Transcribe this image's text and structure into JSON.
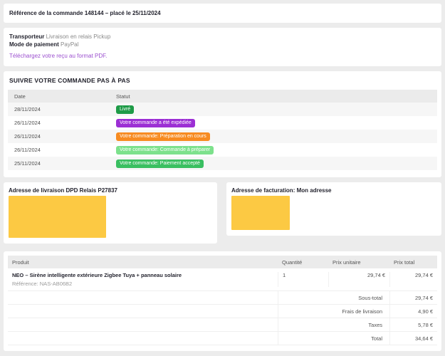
{
  "order_header": {
    "title": "Référence de la commande 148144 – placé le 25/11/2024"
  },
  "order_info": {
    "carrier_label": "Transporteur",
    "carrier_value": "Livraison en relais Pickup",
    "payment_label": "Mode de paiement",
    "payment_value": "PayPal",
    "receipt_link": "Téléchargez votre reçu au format PDF."
  },
  "tracking": {
    "title": "SUIVRE VOTRE COMMANDE PAS À PAS",
    "columns": {
      "date": "Date",
      "status": "Statut"
    },
    "rows": [
      {
        "date": "28/11/2024",
        "status": "Livré",
        "color": "#1e9b47"
      },
      {
        "date": "26/11/2024",
        "status": "Votre commande a été expédiée",
        "color": "#9c2fd4"
      },
      {
        "date": "26/11/2024",
        "status": "Votre commande: Préparation en cours",
        "color": "#f78b21"
      },
      {
        "date": "26/11/2024",
        "status": "Votre commande: Commande à préparer",
        "color": "#7de18c"
      },
      {
        "date": "25/11/2024",
        "status": "Votre commande: Paiement accepté",
        "color": "#3abf61"
      }
    ]
  },
  "addresses": {
    "delivery_title": "Adresse de livraison DPD Relais P27837",
    "billing_title": "Adresse de facturation: Mon adresse",
    "redaction_color": "#fcc943"
  },
  "products": {
    "columns": {
      "product": "Produit",
      "quantity": "Quantité",
      "unit_price": "Prix unitaire",
      "total_price": "Prix total"
    },
    "items": [
      {
        "name": "NEO – Sirène intelligente extérieure Zigbee Tuya + panneau solaire",
        "reference": "Référence: NAS-AB06B2",
        "quantity": "1",
        "unit_price": "29,74 €",
        "total_price": "29,74 €"
      }
    ],
    "totals": [
      {
        "label": "Sous-total",
        "value": "29,74 €"
      },
      {
        "label": "Frais de livraison",
        "value": "4,90 €"
      },
      {
        "label": "Taxes",
        "value": "5,78 €"
      },
      {
        "label": "Total",
        "value": "34,64 €"
      }
    ]
  }
}
